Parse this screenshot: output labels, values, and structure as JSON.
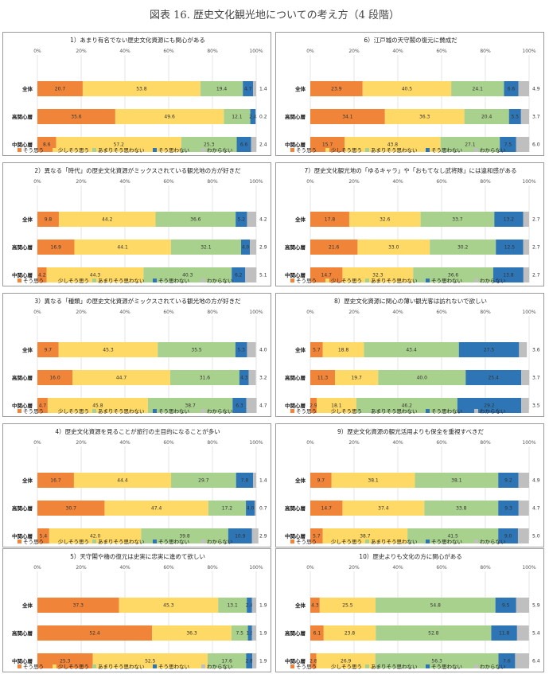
{
  "page": {
    "title": "図表 16. 歴史文化観光地についての考え方（4 段階）"
  },
  "legend": [
    "そう思う",
    "少しそう思う",
    "あまりそう思わない",
    "そう思わない",
    "わからない"
  ],
  "colors": [
    "#f0853a",
    "#ffd966",
    "#a9d18e",
    "#2e75b6",
    "#bfbfbf"
  ],
  "axis_ticks": [
    "0%",
    "20%",
    "40%",
    "60%",
    "80%",
    "100%"
  ],
  "chart_data": [
    {
      "type": "bar",
      "stacked": true,
      "orientation": "horizontal",
      "title": "1）あまり有名でない歴史文化資源にも関心がある",
      "categories": [
        "全体",
        "高関心層",
        "中関心層"
      ],
      "xlim": [
        0,
        100
      ],
      "series": [
        {
          "name": "そう思う",
          "values": [
            20.7,
            35.6,
            8.6
          ]
        },
        {
          "name": "少しそう思う",
          "values": [
            53.8,
            49.6,
            57.2
          ]
        },
        {
          "name": "あまりそう思わない",
          "values": [
            19.4,
            12.1,
            25.3
          ]
        },
        {
          "name": "そう思わない",
          "values": [
            4.7,
            2.4,
            6.6
          ]
        },
        {
          "name": "わからない",
          "values": [
            1.4,
            0.2,
            2.4
          ]
        }
      ]
    },
    {
      "type": "bar",
      "stacked": true,
      "orientation": "horizontal",
      "title": "6）江戸城の天守閣の復元に賛成だ",
      "categories": [
        "全体",
        "高関心層",
        "中関心層"
      ],
      "xlim": [
        0,
        100
      ],
      "series": [
        {
          "name": "そう思う",
          "values": [
            23.9,
            34.1,
            15.7
          ]
        },
        {
          "name": "少しそう思う",
          "values": [
            40.5,
            36.3,
            43.8
          ]
        },
        {
          "name": "あまりそう思わない",
          "values": [
            24.1,
            20.4,
            27.1
          ]
        },
        {
          "name": "そう思わない",
          "values": [
            6.6,
            5.5,
            7.5
          ]
        },
        {
          "name": "わからない",
          "values": [
            4.9,
            3.7,
            6.0
          ]
        }
      ]
    },
    {
      "type": "bar",
      "stacked": true,
      "orientation": "horizontal",
      "title": "2）異なる「時代」の歴史文化資源がミックスされている観光地の方が好きだ",
      "categories": [
        "全体",
        "高関心層",
        "中関心層"
      ],
      "xlim": [
        0,
        100
      ],
      "series": [
        {
          "name": "そう思う",
          "values": [
            9.8,
            16.9,
            4.2
          ]
        },
        {
          "name": "少しそう思う",
          "values": [
            44.2,
            44.1,
            44.3
          ]
        },
        {
          "name": "あまりそう思わない",
          "values": [
            36.6,
            32.1,
            40.3
          ]
        },
        {
          "name": "そう思わない",
          "values": [
            5.2,
            4.0,
            6.2
          ]
        },
        {
          "name": "わからない",
          "values": [
            4.2,
            2.9,
            5.1
          ]
        }
      ]
    },
    {
      "type": "bar",
      "stacked": true,
      "orientation": "horizontal",
      "title": "7）歴史文化観光地の「ゆるキャラ」や「おもてなし武将隊」には違和感がある",
      "categories": [
        "全体",
        "高関心層",
        "中関心層"
      ],
      "xlim": [
        0,
        100
      ],
      "series": [
        {
          "name": "そう思う",
          "values": [
            17.8,
            21.6,
            14.7
          ]
        },
        {
          "name": "少しそう思う",
          "values": [
            32.6,
            33.0,
            32.3
          ]
        },
        {
          "name": "あまりそう思わない",
          "values": [
            33.7,
            30.2,
            36.6
          ]
        },
        {
          "name": "そう思わない",
          "values": [
            13.2,
            12.5,
            13.8
          ]
        },
        {
          "name": "わからない",
          "values": [
            2.7,
            2.7,
            2.7
          ]
        }
      ]
    },
    {
      "type": "bar",
      "stacked": true,
      "orientation": "horizontal",
      "title": "3）異なる「種類」の歴史文化資源がミックスされている観光地の方が好きだ",
      "categories": [
        "全体",
        "高関心層",
        "中関心層"
      ],
      "xlim": [
        0,
        100
      ],
      "series": [
        {
          "name": "そう思う",
          "values": [
            9.7,
            16.0,
            4.7
          ]
        },
        {
          "name": "少しそう思う",
          "values": [
            45.3,
            44.7,
            45.8
          ]
        },
        {
          "name": "あまりそう思わない",
          "values": [
            35.5,
            31.6,
            38.7
          ]
        },
        {
          "name": "そう思わない",
          "values": [
            5.3,
            4.3,
            6.3
          ]
        },
        {
          "name": "わからない",
          "values": [
            4.0,
            3.2,
            4.7
          ]
        }
      ]
    },
    {
      "type": "bar",
      "stacked": true,
      "orientation": "horizontal",
      "title": "8）歴史文化資源に関心の薄い観光客は訪れないで欲しい",
      "categories": [
        "全体",
        "高関心層",
        "中関心層"
      ],
      "xlim": [
        0,
        100
      ],
      "series": [
        {
          "name": "そう思う",
          "values": [
            5.7,
            11.3,
            2.9
          ]
        },
        {
          "name": "少しそう思う",
          "values": [
            18.8,
            19.7,
            18.1
          ]
        },
        {
          "name": "あまりそう思わない",
          "values": [
            43.4,
            40.0,
            46.2
          ]
        },
        {
          "name": "そう思わない",
          "values": [
            27.5,
            25.4,
            29.2
          ]
        },
        {
          "name": "わからない",
          "values": [
            3.6,
            3.7,
            3.5
          ]
        }
      ]
    },
    {
      "type": "bar",
      "stacked": true,
      "orientation": "horizontal",
      "title": "4）歴史文化資源を見ることが旅行の主目的になることが多い",
      "categories": [
        "全体",
        "高関心層",
        "中関心層"
      ],
      "xlim": [
        0,
        100
      ],
      "series": [
        {
          "name": "そう思う",
          "values": [
            16.7,
            30.7,
            5.4
          ]
        },
        {
          "name": "少しそう思う",
          "values": [
            44.4,
            47.4,
            42.0
          ]
        },
        {
          "name": "あまりそう思わない",
          "values": [
            29.7,
            17.2,
            39.8
          ]
        },
        {
          "name": "そう思わない",
          "values": [
            7.8,
            4.0,
            10.9
          ]
        },
        {
          "name": "わからない",
          "values": [
            1.4,
            0.7,
            2.9
          ]
        }
      ]
    },
    {
      "type": "bar",
      "stacked": true,
      "orientation": "horizontal",
      "title": "9）歴史文化資源の観光活用よりも保全を重視すべきだ",
      "categories": [
        "全体",
        "高関心層",
        "中関心層"
      ],
      "xlim": [
        0,
        100
      ],
      "series": [
        {
          "name": "そう思う",
          "values": [
            9.7,
            14.7,
            5.7
          ]
        },
        {
          "name": "少しそう思う",
          "values": [
            38.1,
            37.4,
            38.7
          ]
        },
        {
          "name": "あまりそう思わない",
          "values": [
            38.1,
            33.8,
            41.5
          ]
        },
        {
          "name": "そう思わない",
          "values": [
            9.2,
            9.3,
            9.0
          ]
        },
        {
          "name": "わからない",
          "values": [
            4.9,
            4.7,
            5.0
          ]
        }
      ]
    },
    {
      "type": "bar",
      "stacked": true,
      "orientation": "horizontal",
      "title": "5）天守閣や櫓の復元は史実に忠実に進めて欲しい",
      "categories": [
        "全体",
        "高関心層",
        "中関心層"
      ],
      "xlim": [
        0,
        100
      ],
      "series": [
        {
          "name": "そう思う",
          "values": [
            37.3,
            52.4,
            25.3
          ]
        },
        {
          "name": "少しそう思う",
          "values": [
            45.3,
            36.3,
            52.5
          ]
        },
        {
          "name": "あまりそう思わない",
          "values": [
            13.1,
            7.5,
            17.6
          ]
        },
        {
          "name": "そう思わない",
          "values": [
            2.4,
            1.9,
            2.8
          ]
        },
        {
          "name": "わからない",
          "values": [
            1.9,
            1.9,
            1.9
          ]
        }
      ]
    },
    {
      "type": "bar",
      "stacked": true,
      "orientation": "horizontal",
      "title": "10）歴史よりも文化の方に関心がある",
      "categories": [
        "全体",
        "高関心層",
        "中関心層"
      ],
      "xlim": [
        0,
        100
      ],
      "series": [
        {
          "name": "そう思う",
          "values": [
            4.3,
            6.1,
            2.8
          ]
        },
        {
          "name": "少しそう思う",
          "values": [
            25.5,
            23.8,
            26.9
          ]
        },
        {
          "name": "あまりそう思わない",
          "values": [
            54.8,
            52.8,
            56.3
          ]
        },
        {
          "name": "そう思わない",
          "values": [
            9.5,
            11.8,
            7.6
          ]
        },
        {
          "name": "わからない",
          "values": [
            5.9,
            5.4,
            6.4
          ]
        }
      ]
    }
  ]
}
